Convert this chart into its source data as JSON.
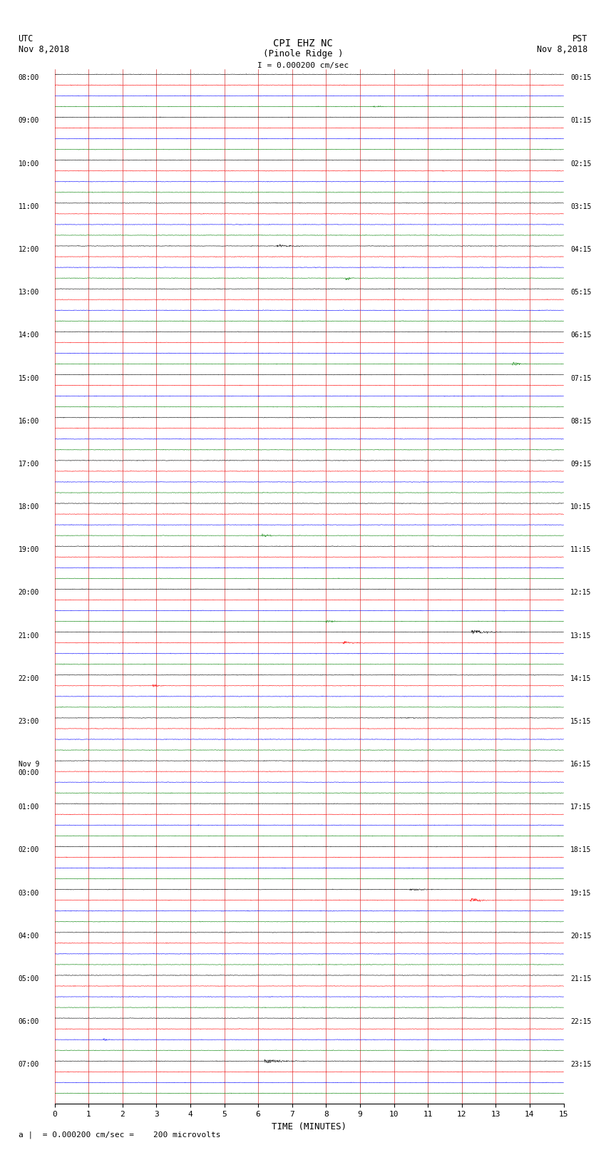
{
  "title_line1": "CPI EHZ NC",
  "title_line2": "(Pinole Ridge )",
  "scale_label": "I = 0.000200 cm/sec",
  "left_label_top": "UTC",
  "left_label_date": "Nov 8,2018",
  "right_label_top": "PST",
  "right_label_date": "Nov 8,2018",
  "xlabel": "TIME (MINUTES)",
  "bottom_note": "a |  = 0.000200 cm/sec =    200 microvolts",
  "xlim": [
    0,
    15
  ],
  "xticks": [
    0,
    1,
    2,
    3,
    4,
    5,
    6,
    7,
    8,
    9,
    10,
    11,
    12,
    13,
    14,
    15
  ],
  "colors": [
    "black",
    "red",
    "blue",
    "green"
  ],
  "utc_times": [
    "08:00",
    "09:00",
    "10:00",
    "11:00",
    "12:00",
    "13:00",
    "14:00",
    "15:00",
    "16:00",
    "17:00",
    "18:00",
    "19:00",
    "20:00",
    "21:00",
    "22:00",
    "23:00",
    "Nov 9\n00:00",
    "01:00",
    "02:00",
    "03:00",
    "04:00",
    "05:00",
    "06:00",
    "07:00"
  ],
  "pst_times": [
    "00:15",
    "01:15",
    "02:15",
    "03:15",
    "04:15",
    "05:15",
    "06:15",
    "07:15",
    "08:15",
    "09:15",
    "10:15",
    "11:15",
    "12:15",
    "13:15",
    "14:15",
    "15:15",
    "16:15",
    "17:15",
    "18:15",
    "19:15",
    "20:15",
    "21:15",
    "22:15",
    "23:15"
  ],
  "num_hours": 24,
  "traces_per_hour": 4,
  "noise_base": 0.03,
  "background_color": "white",
  "grid_color": "#cc0000",
  "grid_linewidth": 0.4,
  "trace_linewidth": 0.4,
  "fig_width": 8.5,
  "fig_height": 16.13,
  "dpi": 100
}
